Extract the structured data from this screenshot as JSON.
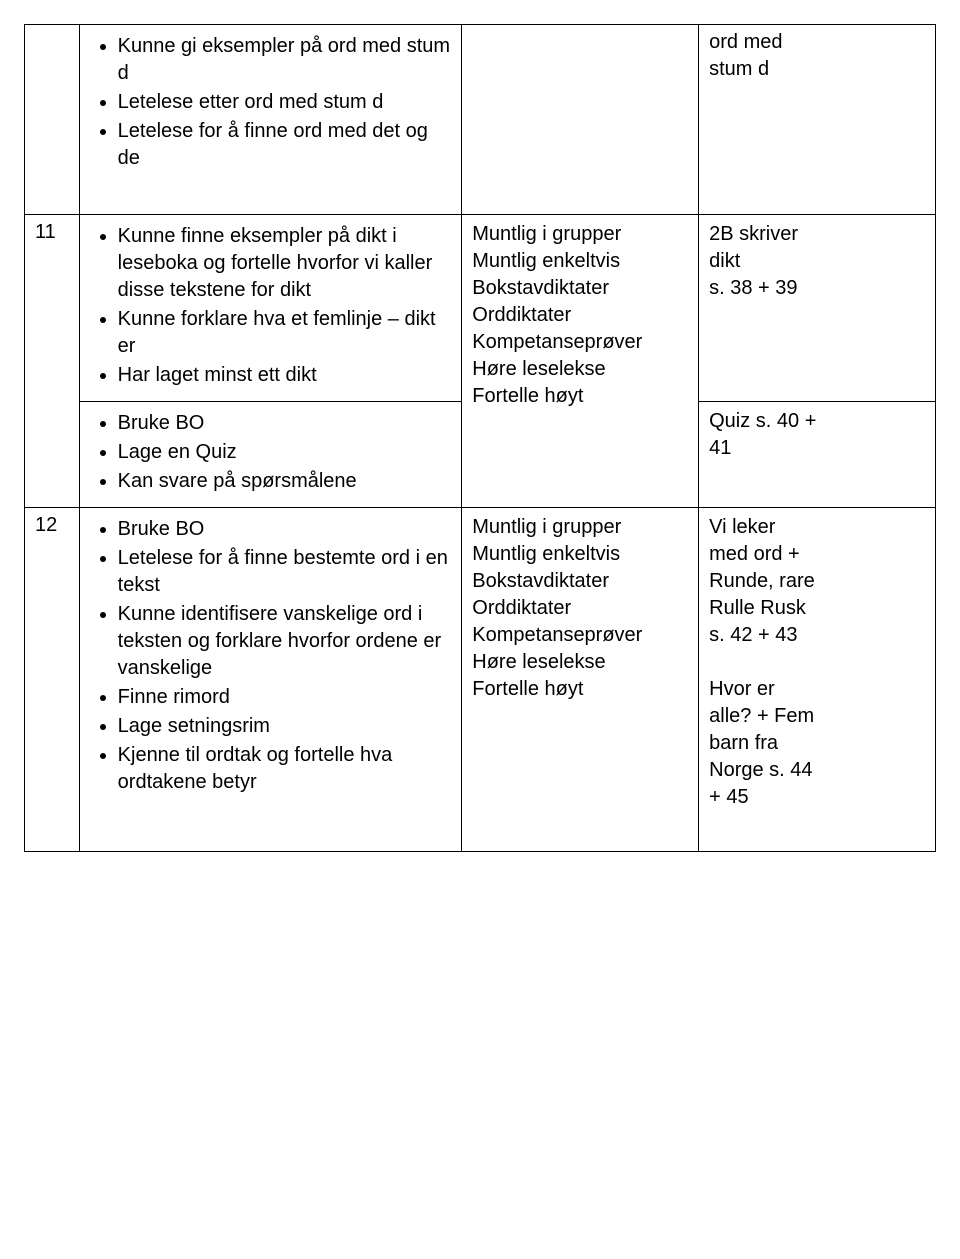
{
  "rows": [
    {
      "num": "",
      "items_a": [
        "Kunne gi eksempler på ord med stum d",
        "Letelese etter ord med stum d",
        "Letelese for å finne ord med det og de"
      ],
      "col2_lines": [],
      "col3_lines": [
        "ord med",
        "stum d"
      ]
    },
    {
      "num": "11",
      "items_a": [
        "Kunne finne eksempler på dikt i leseboka og fortelle hvorfor vi kaller disse tekstene for dikt",
        "Kunne forklare hva et femlinje – dikt er",
        "Har laget minst ett dikt"
      ],
      "col2_lines": [
        "Muntlig i grupper",
        "Muntlig enkeltvis",
        "Bokstavdiktater",
        "Orddiktater",
        "Kompetanseprøver",
        "Høre leselekse",
        "Fortelle høyt"
      ],
      "col3_lines": [
        "2B skriver",
        "dikt",
        "s. 38 + 39"
      ]
    },
    {
      "num": "",
      "items_a": [
        "Bruke BO",
        "Lage en Quiz",
        "Kan svare på spørsmålene"
      ],
      "col2_lines": [],
      "col3_lines": [
        "Quiz s. 40 +",
        "41"
      ]
    },
    {
      "num": "12",
      "items_a": [
        "Bruke BO",
        "Letelese for å finne bestemte ord i en tekst",
        "Kunne identifisere vanskelige ord i teksten og forklare hvorfor ordene er vanskelige",
        "Finne rimord",
        "Lage setningsrim",
        "Kjenne til ordtak og fortelle hva ordtakene betyr"
      ],
      "col2_lines": [
        "Muntlig i grupper",
        "Muntlig enkeltvis",
        "Bokstavdiktater",
        "Orddiktater",
        "Kompetanseprøver",
        "Høre leselekse",
        "Fortelle høyt"
      ],
      "col3_lines": [
        "Vi leker",
        "med ord  +",
        "Runde, rare",
        "Rulle Rusk",
        "s. 42 + 43",
        "",
        "Hvor er",
        "alle? + Fem",
        "barn fra",
        "Norge s. 44",
        "+ 45"
      ]
    }
  ]
}
